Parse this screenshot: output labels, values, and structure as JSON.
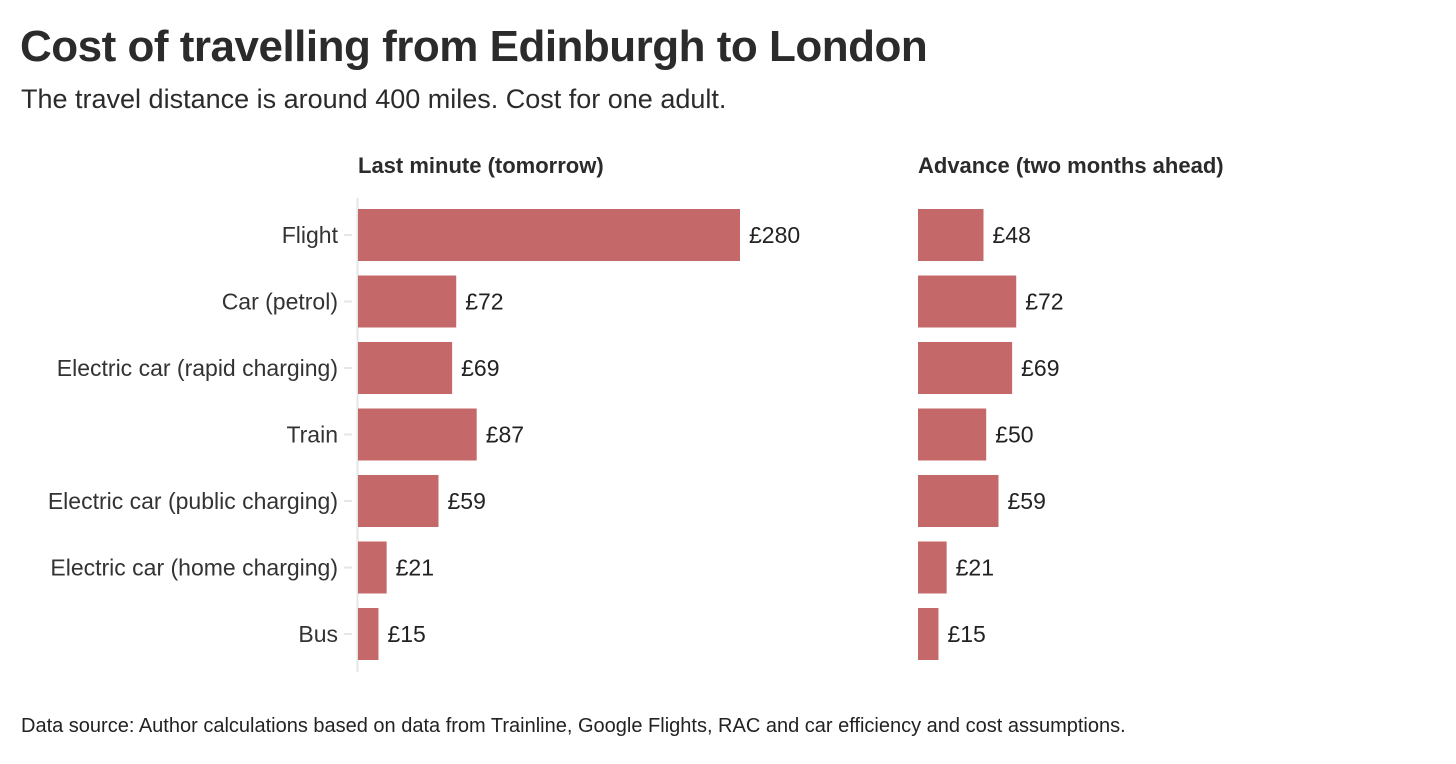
{
  "title": "Cost of travelling from Edinburgh to London",
  "subtitle": "The travel distance is around 400 miles. Cost for one adult.",
  "source": "Data source: Author calculations based on data from Trainline, Google Flights, RAC and car efficiency and cost assumptions.",
  "colors": {
    "bar": "#c4686a",
    "axis": "#e6e6e6"
  },
  "chart_data": {
    "type": "bar",
    "orientation": "horizontal",
    "value_prefix": "£",
    "grid": false,
    "categories": [
      "Flight",
      "Car (petrol)",
      "Electric car (rapid charging)",
      "Train",
      "Electric car (public charging)",
      "Electric car (home charging)",
      "Bus"
    ],
    "series": [
      {
        "name": "Last minute (tomorrow)",
        "values": [
          280,
          72,
          69,
          87,
          59,
          21,
          15
        ]
      },
      {
        "name": "Advance (two months ahead)",
        "values": [
          48,
          72,
          69,
          50,
          59,
          21,
          15
        ]
      }
    ],
    "xlim": [
      0,
      280
    ]
  }
}
